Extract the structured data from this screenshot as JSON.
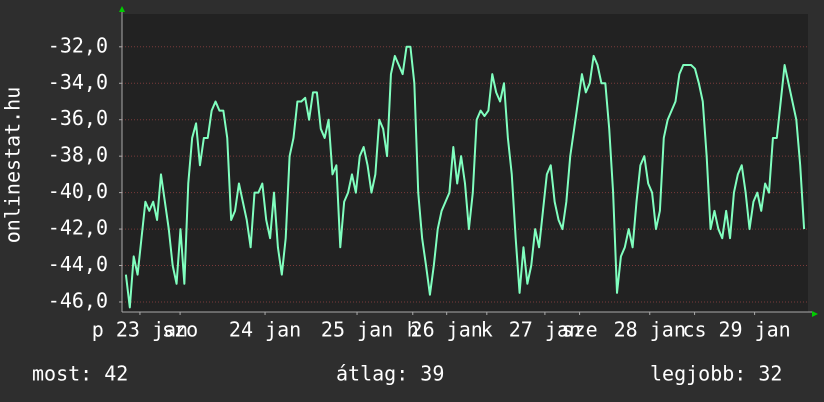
{
  "chart_data": {
    "type": "line",
    "ylabel": "onlinestat.hu",
    "color": "#80ffbf",
    "grid": true,
    "xlim": [
      0,
      176
    ],
    "ylim": [
      -46.55,
      -30.2
    ],
    "yticks": [
      {
        "value": -32,
        "label": "-32,0"
      },
      {
        "value": -34,
        "label": "-34,0"
      },
      {
        "value": -36,
        "label": "-36,0"
      },
      {
        "value": -38,
        "label": "-38,0"
      },
      {
        "value": -40,
        "label": "-40,0"
      },
      {
        "value": -42,
        "label": "-42,0"
      },
      {
        "value": -44,
        "label": "-44,0"
      },
      {
        "value": -46,
        "label": "-46,0"
      }
    ],
    "xticks": [
      {
        "value": 4.6,
        "label": "p 23 jan"
      },
      {
        "value": 14.9,
        "label": "szo"
      },
      {
        "value": 36.7,
        "label": "24 jan"
      },
      {
        "value": 60.3,
        "label": "25 jan"
      },
      {
        "value": 74.6,
        "label": "h"
      },
      {
        "value": 83.3,
        "label": "26 jan"
      },
      {
        "value": 93.6,
        "label": "k"
      },
      {
        "value": 108.5,
        "label": "27 jan"
      },
      {
        "value": 117.4,
        "label": "sze"
      },
      {
        "value": 135.4,
        "label": "28 jan"
      },
      {
        "value": 146.9,
        "label": "cs"
      },
      {
        "value": 162.3,
        "label": "29 jan"
      }
    ],
    "x": [
      1,
      2,
      3,
      4,
      5,
      6,
      7,
      8,
      9,
      10,
      11,
      12,
      13,
      14,
      15,
      16,
      17,
      18,
      19,
      20,
      21,
      22,
      23,
      24,
      25,
      26,
      27,
      28,
      29,
      30,
      31,
      32,
      33,
      34,
      35,
      36,
      37,
      38,
      39,
      40,
      41,
      42,
      43,
      44,
      45,
      46,
      47,
      48,
      49,
      50,
      51,
      52,
      53,
      54,
      55,
      56,
      57,
      58,
      59,
      60,
      61,
      62,
      63,
      64,
      65,
      66,
      67,
      68,
      69,
      70,
      71,
      72,
      73,
      74,
      75,
      76,
      77,
      78,
      79,
      80,
      81,
      82,
      83,
      84,
      85,
      86,
      87,
      88,
      89,
      90,
      91,
      92,
      93,
      94,
      95,
      96,
      97,
      98,
      99,
      100,
      101,
      102,
      103,
      104,
      105,
      106,
      107,
      108,
      109,
      110,
      111,
      112,
      113,
      114,
      115,
      116,
      117,
      118,
      119,
      120,
      121,
      122,
      123,
      124,
      125,
      126,
      127,
      128,
      129,
      130,
      131,
      132,
      133,
      134,
      135,
      136,
      137,
      138,
      139,
      140,
      141,
      142,
      143,
      144,
      145,
      146,
      147,
      148,
      149,
      150,
      151,
      152,
      153,
      154,
      155,
      156,
      157,
      158,
      159,
      160,
      161,
      162,
      163,
      164,
      165,
      166,
      167,
      168,
      169,
      170,
      171,
      172,
      173,
      174,
      175
    ],
    "values": [
      -44.5,
      -46.3,
      -43.5,
      -44.5,
      -42.5,
      -40.5,
      -41,
      -40.5,
      -41.5,
      -39,
      -40.5,
      -42,
      -44,
      -45,
      -42,
      -45,
      -39.5,
      -37,
      -36.2,
      -38.5,
      -37,
      -37,
      -35.5,
      -35,
      -35.5,
      -35.5,
      -37,
      -41.5,
      -41,
      -39.5,
      -40.5,
      -41.5,
      -43,
      -40,
      -40,
      -39.5,
      -41.5,
      -42.5,
      -40,
      -43,
      -44.5,
      -42.5,
      -38,
      -37,
      -35,
      -35,
      -34.8,
      -36,
      -34.5,
      -34.5,
      -36.5,
      -37,
      -36,
      -39,
      -38.5,
      -43,
      -40.5,
      -40,
      -39,
      -40,
      -38,
      -37.5,
      -38.5,
      -40,
      -39,
      -36,
      -36.5,
      -38,
      -33.5,
      -32.5,
      -33,
      -33.5,
      -32,
      -32,
      -34,
      -40,
      -42.5,
      -44,
      -45.6,
      -44,
      -42,
      -41,
      -40.5,
      -40,
      -37.5,
      -39.5,
      -38,
      -39.5,
      -42,
      -40,
      -36,
      -35.5,
      -35.8,
      -35.5,
      -33.5,
      -34.5,
      -35,
      -34,
      -37,
      -39,
      -42.5,
      -45.5,
      -43,
      -45,
      -44,
      -42,
      -43,
      -41,
      -39,
      -38.5,
      -40.5,
      -41.5,
      -42,
      -40.5,
      -38,
      -36.5,
      -35,
      -33.5,
      -34.5,
      -34,
      -32.5,
      -33,
      -34,
      -34,
      -36.5,
      -40,
      -45.5,
      -43.5,
      -43,
      -42,
      -43,
      -40.5,
      -38.5,
      -38,
      -39.5,
      -40,
      -42,
      -41,
      -37,
      -36,
      -35.5,
      -35,
      -33.5,
      -33,
      -33,
      -33,
      -33.2,
      -34,
      -35,
      -38,
      -42,
      -41,
      -42,
      -42.5,
      -41,
      -42.5,
      -40,
      -39,
      -38.5,
      -40,
      -42,
      -40.5,
      -40,
      -41,
      -39.5,
      -40,
      -37,
      -37,
      -35,
      -33,
      -34,
      -35,
      -36,
      -38.5,
      -42
    ],
    "footer": [
      "most: 42",
      "átlag: 39",
      "legjobb: 32"
    ]
  }
}
